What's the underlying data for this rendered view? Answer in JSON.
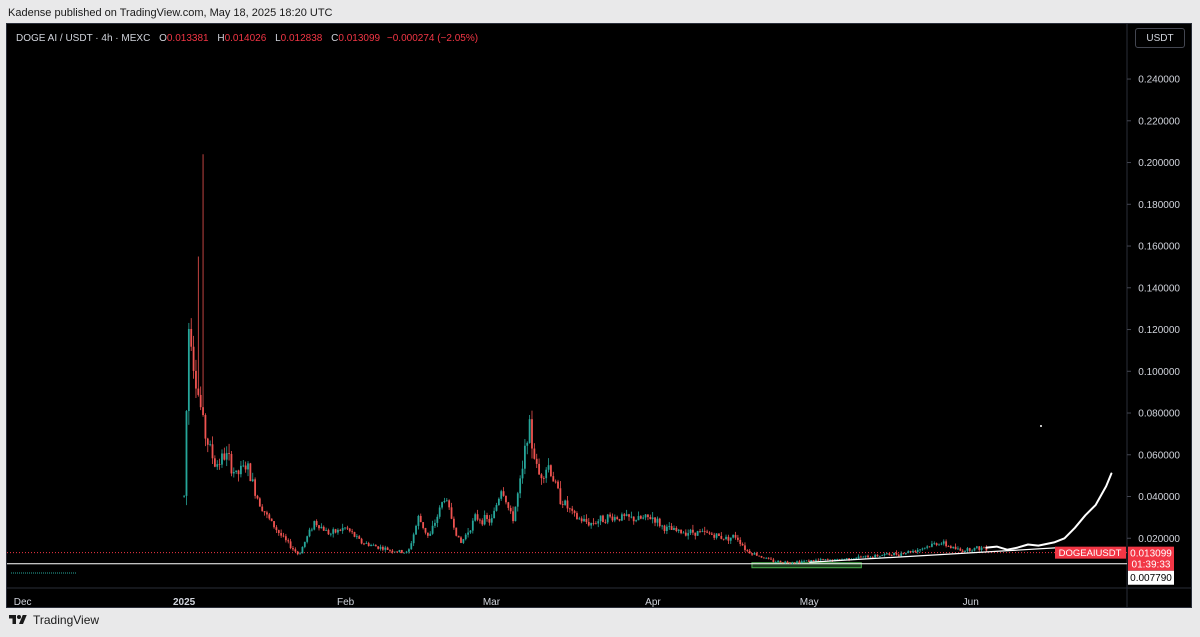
{
  "header": {
    "publisher_text": "Kadense published on TradingView.com, May 18, 2025 18:20 UTC"
  },
  "legend": {
    "symbol": "DOGE AI / USDT · 4h · MEXC",
    "open_label": "O",
    "open": "0.013381",
    "high_label": "H",
    "high": "0.014026",
    "low_label": "L",
    "low": "0.012838",
    "close_label": "C",
    "close": "0.013099",
    "change": "−0.000274 (−2.05%)"
  },
  "currency": "USDT",
  "footer": {
    "brand": "TradingView"
  },
  "colors": {
    "up": "#26a69a",
    "down": "#ef5350",
    "background": "#000000",
    "price_tag": "#f23645",
    "support_box": "#4caf50"
  },
  "chart_data": {
    "type": "candlestick",
    "symbol": "DOGEAIUSDT",
    "interval": "4h",
    "exchange": "MEXC",
    "y_axis": {
      "position": "right",
      "ticks": [
        "0.240000",
        "0.220000",
        "0.200000",
        "0.180000",
        "0.160000",
        "0.140000",
        "0.120000",
        "0.100000",
        "0.080000",
        "0.060000",
        "0.040000",
        "0.020000"
      ],
      "ylim": [
        0.0,
        0.252
      ]
    },
    "x_axis": {
      "labels": [
        "Dec",
        "2025",
        "Feb",
        "Mar",
        "Apr",
        "May",
        "Jun"
      ],
      "label_dates": [
        "2024-12-01",
        "2025-01-01",
        "2025-02-01",
        "2025-03-01",
        "2025-04-01",
        "2025-05-01",
        "2025-06-01"
      ],
      "xlim": [
        "2024-11-28",
        "2025-07-01"
      ]
    },
    "price_tag": {
      "symbol_label": "DOGEAIUSDT",
      "price": "0.013099",
      "countdown": "01:39:33"
    },
    "support_level": {
      "price_label": "0.007790",
      "value": 0.00779
    },
    "current_price_line": 0.0131,
    "close_series": [
      {
        "date": "2025-01-01",
        "price": 0.04
      },
      {
        "date": "2025-01-02",
        "price": 0.13
      },
      {
        "date": "2025-01-03",
        "price": 0.1
      },
      {
        "date": "2025-01-04",
        "price": 0.085
      },
      {
        "date": "2025-01-05",
        "price": 0.07
      },
      {
        "date": "2025-01-07",
        "price": 0.055
      },
      {
        "date": "2025-01-09",
        "price": 0.06
      },
      {
        "date": "2025-01-11",
        "price": 0.05
      },
      {
        "date": "2025-01-13",
        "price": 0.055
      },
      {
        "date": "2025-01-15",
        "price": 0.04
      },
      {
        "date": "2025-01-17",
        "price": 0.03
      },
      {
        "date": "2025-01-20",
        "price": 0.02
      },
      {
        "date": "2025-01-23",
        "price": 0.012
      },
      {
        "date": "2025-01-26",
        "price": 0.028
      },
      {
        "date": "2025-01-29",
        "price": 0.022
      },
      {
        "date": "2025-02-01",
        "price": 0.025
      },
      {
        "date": "2025-02-04",
        "price": 0.018
      },
      {
        "date": "2025-02-07",
        "price": 0.016
      },
      {
        "date": "2025-02-10",
        "price": 0.014
      },
      {
        "date": "2025-02-13",
        "price": 0.013
      },
      {
        "date": "2025-02-15",
        "price": 0.03
      },
      {
        "date": "2025-02-17",
        "price": 0.02
      },
      {
        "date": "2025-02-20",
        "price": 0.04
      },
      {
        "date": "2025-02-23",
        "price": 0.017
      },
      {
        "date": "2025-02-26",
        "price": 0.03
      },
      {
        "date": "2025-03-01",
        "price": 0.028
      },
      {
        "date": "2025-03-03",
        "price": 0.045
      },
      {
        "date": "2025-03-05",
        "price": 0.028
      },
      {
        "date": "2025-03-07",
        "price": 0.052
      },
      {
        "date": "2025-03-08",
        "price": 0.075
      },
      {
        "date": "2025-03-10",
        "price": 0.05
      },
      {
        "date": "2025-03-12",
        "price": 0.055
      },
      {
        "date": "2025-03-14",
        "price": 0.04
      },
      {
        "date": "2025-03-17",
        "price": 0.03
      },
      {
        "date": "2025-03-20",
        "price": 0.027
      },
      {
        "date": "2025-03-23",
        "price": 0.03
      },
      {
        "date": "2025-03-26",
        "price": 0.03
      },
      {
        "date": "2025-03-29",
        "price": 0.029
      },
      {
        "date": "2025-04-01",
        "price": 0.03
      },
      {
        "date": "2025-04-03",
        "price": 0.025
      },
      {
        "date": "2025-04-06",
        "price": 0.023
      },
      {
        "date": "2025-04-09",
        "price": 0.023
      },
      {
        "date": "2025-04-12",
        "price": 0.022
      },
      {
        "date": "2025-04-15",
        "price": 0.02
      },
      {
        "date": "2025-04-17",
        "price": 0.021
      },
      {
        "date": "2025-04-19",
        "price": 0.014
      },
      {
        "date": "2025-04-21",
        "price": 0.012
      },
      {
        "date": "2025-04-24",
        "price": 0.009
      },
      {
        "date": "2025-04-27",
        "price": 0.0085
      },
      {
        "date": "2025-04-30",
        "price": 0.009
      },
      {
        "date": "2025-05-03",
        "price": 0.0095
      },
      {
        "date": "2025-05-06",
        "price": 0.0095
      },
      {
        "date": "2025-05-09",
        "price": 0.0105
      },
      {
        "date": "2025-05-12",
        "price": 0.011
      },
      {
        "date": "2025-05-15",
        "price": 0.012
      },
      {
        "date": "2025-05-18",
        "price": 0.0125
      },
      {
        "date": "2025-05-21",
        "price": 0.014
      },
      {
        "date": "2025-05-23",
        "price": 0.0155
      },
      {
        "date": "2025-05-26",
        "price": 0.018
      },
      {
        "date": "2025-05-28",
        "price": 0.016
      },
      {
        "date": "2025-05-30",
        "price": 0.014
      },
      {
        "date": "2025-06-01",
        "price": 0.015
      },
      {
        "date": "2025-06-04",
        "price": 0.0155
      }
    ],
    "projection": [
      {
        "date": "2025-06-04",
        "price": 0.0155
      },
      {
        "date": "2025-06-06",
        "price": 0.016
      },
      {
        "date": "2025-06-08",
        "price": 0.0145
      },
      {
        "date": "2025-06-10",
        "price": 0.0155
      },
      {
        "date": "2025-06-12",
        "price": 0.017
      },
      {
        "date": "2025-06-14",
        "price": 0.0165
      },
      {
        "date": "2025-06-17",
        "price": 0.018
      },
      {
        "date": "2025-06-19",
        "price": 0.02
      },
      {
        "date": "2025-06-21",
        "price": 0.025
      },
      {
        "date": "2025-06-23",
        "price": 0.031
      },
      {
        "date": "2025-06-25",
        "price": 0.036
      },
      {
        "date": "2025-06-27",
        "price": 0.045
      },
      {
        "date": "2025-06-28",
        "price": 0.051
      }
    ]
  }
}
